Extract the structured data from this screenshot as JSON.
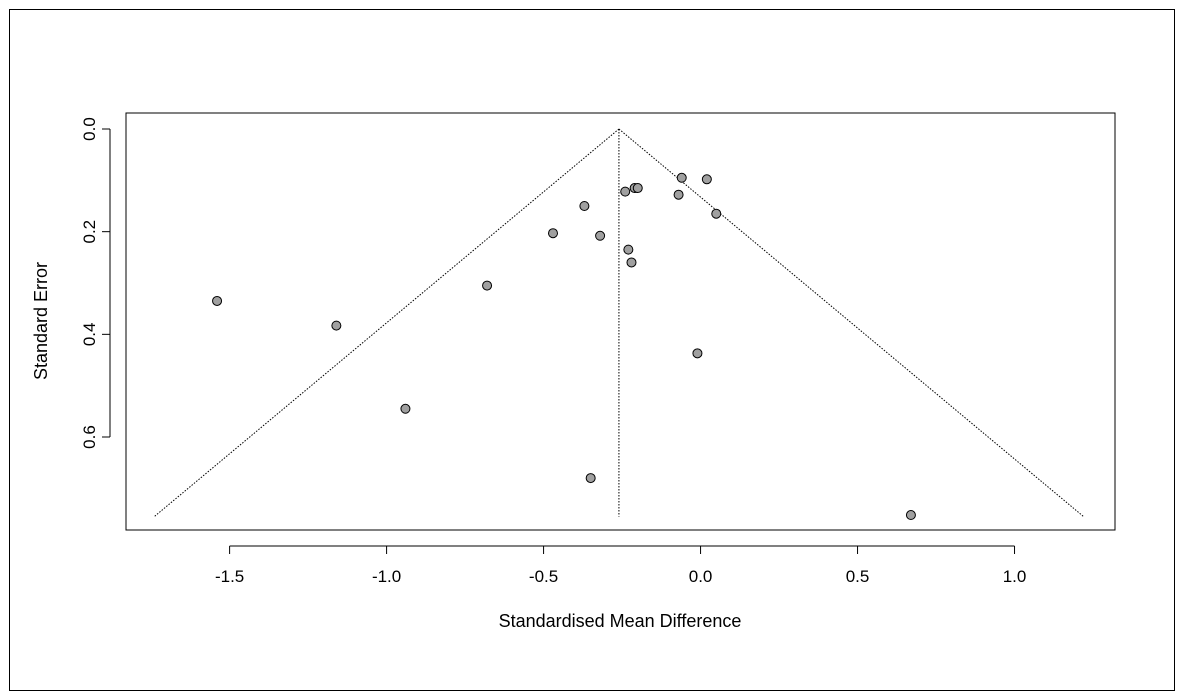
{
  "chart_data": {
    "type": "scatter",
    "subtype": "funnel plot",
    "title": "",
    "xlabel": "Standardised Mean Difference",
    "ylabel": "Standard Error",
    "xlim": [
      -1.83,
      1.32
    ],
    "ylim_reversed": [
      0.0,
      0.77
    ],
    "x_ticks": [
      -1.5,
      -1.0,
      -0.5,
      0.0,
      0.5,
      1.0
    ],
    "x_tick_labels": [
      "-1.5",
      "-1.0",
      "-0.5",
      "0.0",
      "0.5",
      "1.0"
    ],
    "y_ticks": [
      0.0,
      0.2,
      0.4,
      0.6
    ],
    "y_tick_labels": [
      "0.0",
      "0.2",
      "0.4",
      "0.6"
    ],
    "pooled_estimate": -0.26,
    "funnel_max_se": 0.755,
    "grid": false,
    "point_fill": "#a0a0a0",
    "line_color": "#000000",
    "points": [
      {
        "x": -1.54,
        "y": 0.335
      },
      {
        "x": -1.16,
        "y": 0.383
      },
      {
        "x": -0.94,
        "y": 0.545
      },
      {
        "x": -0.68,
        "y": 0.305
      },
      {
        "x": -0.47,
        "y": 0.203
      },
      {
        "x": -0.37,
        "y": 0.15
      },
      {
        "x": -0.35,
        "y": 0.68
      },
      {
        "x": -0.32,
        "y": 0.208
      },
      {
        "x": -0.24,
        "y": 0.122
      },
      {
        "x": -0.23,
        "y": 0.235
      },
      {
        "x": -0.22,
        "y": 0.26
      },
      {
        "x": -0.21,
        "y": 0.115
      },
      {
        "x": -0.2,
        "y": 0.115
      },
      {
        "x": -0.07,
        "y": 0.128
      },
      {
        "x": -0.06,
        "y": 0.095
      },
      {
        "x": -0.01,
        "y": 0.437
      },
      {
        "x": 0.02,
        "y": 0.098
      },
      {
        "x": 0.05,
        "y": 0.165
      },
      {
        "x": 0.67,
        "y": 0.752
      }
    ]
  }
}
